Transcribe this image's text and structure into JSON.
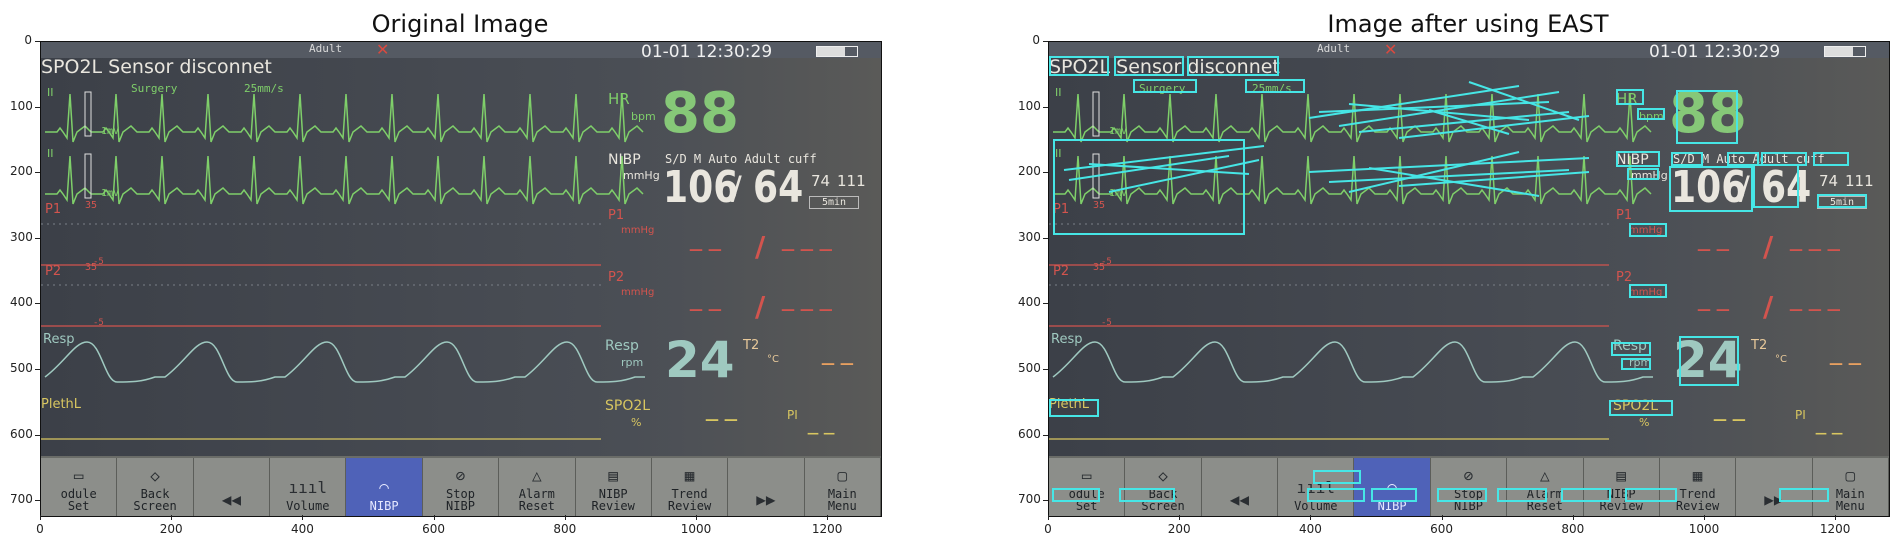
{
  "figure": {
    "left_title": "Original Image",
    "right_title": "Image after using EAST",
    "y_ticks": [
      "0",
      "100",
      "200",
      "300",
      "400",
      "500",
      "600",
      "700"
    ],
    "x_ticks": [
      "0",
      "200",
      "400",
      "600",
      "800",
      "1000",
      "1200"
    ]
  },
  "monitor": {
    "top_mode": "Adult",
    "datetime": "01-01 12:30:29",
    "datetime_date": "01-01",
    "datetime_time": "12:30:29",
    "alarm_message": "SPO2L Sensor disconnet",
    "alarm_words": [
      "SPO2L",
      "Sensor",
      "disconnet"
    ],
    "mode_label": "Surgery",
    "speed_label": "25mm/s",
    "ecg_lead_1": "II",
    "ecg_lead_2": "II",
    "ecg_scale_1": "1mV",
    "ecg_scale_2": "1mV",
    "hr_label": "HR",
    "hr_unit": "bpm",
    "hr_value": "88",
    "nibp_label": "NIBP",
    "nibp_unit": "mmHg",
    "nibp_info": "S/D M Auto Adult cuff",
    "nibp_info_parts": [
      "S/D",
      "M",
      "Auto",
      "Adult",
      "cuff"
    ],
    "nibp_sys": "106",
    "nibp_slash": "/",
    "nibp_dia": "64",
    "nibp_mean": "74",
    "nibp_mean_unit": "111",
    "nibp_interval": "5min",
    "p1_label": "P1",
    "p1_scale_top": "35",
    "p1_scale_bottom": "-5",
    "p1_unit": "mmHg",
    "p2_label": "P2",
    "p2_scale_top": "35",
    "p2_scale_bottom": "-5",
    "p2_unit": "mmHg",
    "dash_left": "— —",
    "dash_right": "— — —",
    "dash_slash": "/",
    "resp_label": "Resp",
    "resp_unit": "rpm",
    "resp_value": "24",
    "resp_wave_label": "Resp",
    "t2_label": "T2",
    "t2_unit": "°C",
    "t2_value": "— —",
    "spo2l_label": "SPO2L",
    "spo2l_unit": "%",
    "spo2l_value": "— —",
    "pi_label": "PI",
    "pi_value": "— —",
    "pleth_label": "PlethL"
  },
  "toolbar": [
    {
      "icon": "▭",
      "label1": "odule",
      "label2": "Set",
      "icon_name": "module-icon"
    },
    {
      "icon": "◇",
      "label1": "Back",
      "label2": "Screen",
      "icon_name": "back-screen-icon"
    },
    {
      "icon": "◀◀",
      "label1": "",
      "label2": "",
      "icon_name": "rewind-icon"
    },
    {
      "icon": "ıııl",
      "label1": "",
      "label2": "Volume",
      "icon_name": "volume-icon"
    },
    {
      "icon": "◠",
      "label1": "",
      "label2": "NIBP",
      "icon_name": "nibp-icon",
      "active": true
    },
    {
      "icon": "⊘",
      "label1": "Stop",
      "label2": "NIBP",
      "icon_name": "stop-nibp-icon"
    },
    {
      "icon": "△",
      "label1": "Alarm",
      "label2": "Reset",
      "icon_name": "alarm-reset-icon"
    },
    {
      "icon": "▤",
      "label1": "NIBP",
      "label2": "Review",
      "icon_name": "nibp-review-icon"
    },
    {
      "icon": "▦",
      "label1": "Trend",
      "label2": "Review",
      "icon_name": "trend-review-icon"
    },
    {
      "icon": "▶▶",
      "label1": "",
      "label2": "",
      "icon_name": "forward-icon"
    },
    {
      "icon": "▢",
      "label1": "Main",
      "label2": "Menu",
      "icon_name": "main-menu-icon"
    }
  ],
  "colors": {
    "ecg": "#7fcf6a",
    "pressure": "#d2544e",
    "resp": "#9fc9c0",
    "spo2": "#d8c660",
    "detection_box": "#46e6e6",
    "active_button": "#4f62b8"
  }
}
